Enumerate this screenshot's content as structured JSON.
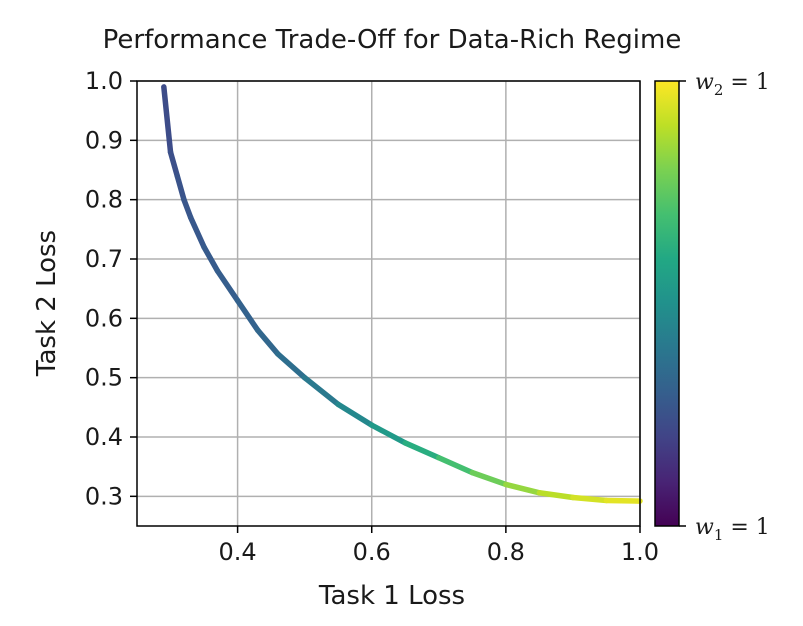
{
  "chart_data": {
    "type": "line",
    "title": "Performance Trade-Off for Data-Rich Regime",
    "xlabel": "Task 1 Loss",
    "ylabel": "Task 2 Loss",
    "xlim": [
      0.25,
      1.0
    ],
    "ylim": [
      0.25,
      1.0
    ],
    "x_ticks": [
      0.4,
      0.6,
      0.8,
      1.0
    ],
    "x_tick_labels": [
      "0.4",
      "0.6",
      "0.8",
      "1.0"
    ],
    "y_ticks": [
      0.3,
      0.4,
      0.5,
      0.6,
      0.7,
      0.8,
      0.9,
      1.0
    ],
    "y_tick_labels": [
      "0.3",
      "0.4",
      "0.5",
      "0.6",
      "0.7",
      "0.8",
      "0.9",
      "1.0"
    ],
    "grid": true,
    "colormap": "viridis",
    "colorbar": {
      "top_label": {
        "var": "w",
        "sub": "2",
        "rest": " = 1"
      },
      "bottom_label": {
        "var": "w",
        "sub": "1",
        "rest": " = 1"
      }
    },
    "series": [
      {
        "x": [
          0.29,
          0.3,
          0.31,
          0.32,
          0.33,
          0.35,
          0.37,
          0.4,
          0.43,
          0.46,
          0.5,
          0.55,
          0.6,
          0.65,
          0.7,
          0.75,
          0.8,
          0.85,
          0.9,
          0.95,
          1.0
        ],
        "y": [
          0.99,
          0.88,
          0.84,
          0.8,
          0.77,
          0.72,
          0.68,
          0.63,
          0.58,
          0.54,
          0.5,
          0.455,
          0.42,
          0.39,
          0.365,
          0.34,
          0.32,
          0.306,
          0.298,
          0.293,
          0.292
        ],
        "color_value": [
          0.22,
          0.24,
          0.25,
          0.26,
          0.27,
          0.28,
          0.29,
          0.3,
          0.32,
          0.34,
          0.38,
          0.43,
          0.5,
          0.58,
          0.66,
          0.74,
          0.81,
          0.87,
          0.92,
          0.95,
          0.97
        ]
      }
    ],
    "colors": {
      "axis": "#000000",
      "grid": "#b0b0b0"
    }
  }
}
